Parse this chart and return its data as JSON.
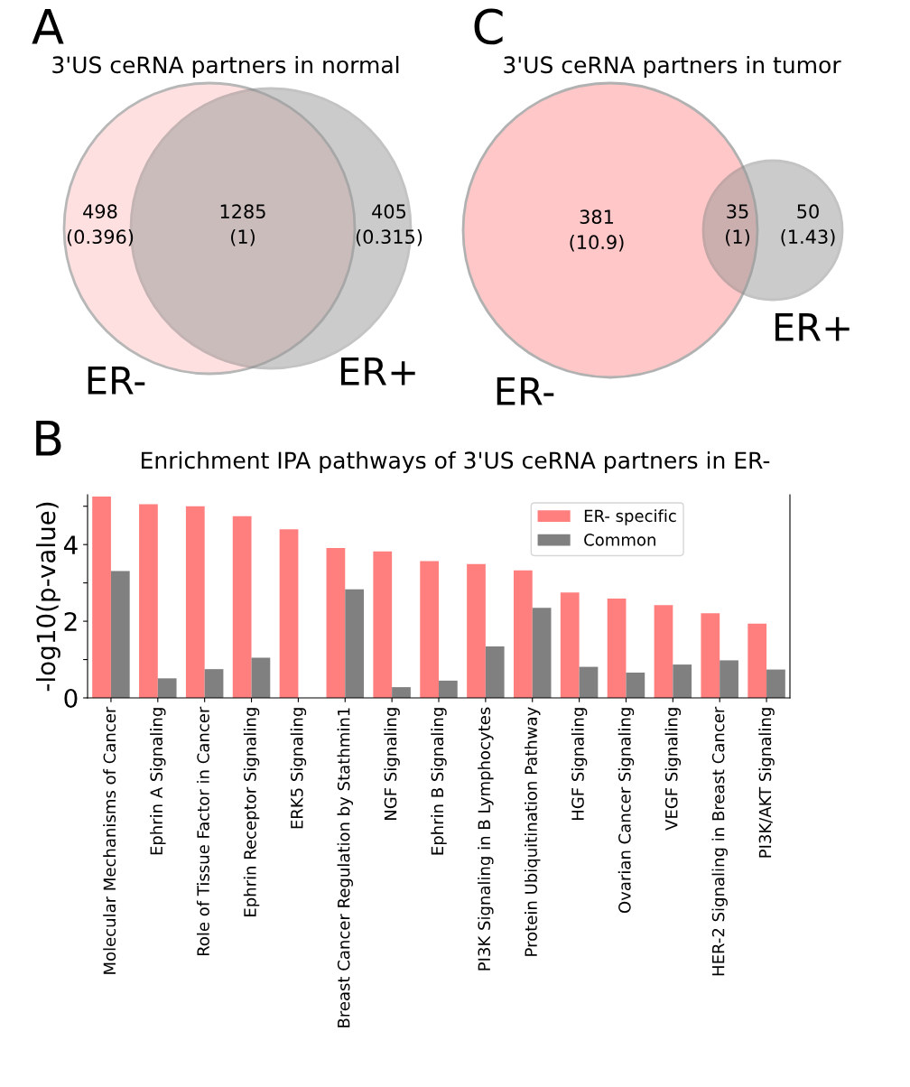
{
  "chart_data": [
    {
      "type": "other",
      "title": "3'US ceRNA partners in normal",
      "categories": [
        "ER-",
        "ER+"
      ],
      "colors": [
        "#ffcccc",
        "#999999"
      ],
      "annotations": [
        "A",
        "498\n(0.396)",
        "1285\n(1)",
        "405\n(0.315)"
      ]
    },
    {
      "type": "other",
      "title": "3'US ceRNA partners in tumor",
      "categories": [
        "ER-",
        "ER+"
      ],
      "colors": [
        "#ffaaaa",
        "#999999"
      ],
      "annotations": [
        "C",
        "381\n(10.9)",
        "35\n(1)",
        "50\n(1.43)"
      ]
    },
    {
      "type": "bar",
      "title": "Enrichment IPA pathways of 3'US ceRNA partners in ER-",
      "ylabel": "-log10(p-value)",
      "annotations": [
        "B"
      ],
      "categories": [
        "Molecular Mechanisms of Cancer",
        "Ephrin A Signaling",
        "Role of Tissue Factor in Cancer",
        "Ephrin Receptor Signaling",
        "ERK5 Signaling",
        "Breast Cancer Regulation by Stathmin1",
        "NGF Signaling",
        "Ephrin B Signaling",
        "PI3K Signaling in B Lymphocytes",
        "Protein Ubiquitination Pathway",
        "HGF Signaling",
        "Ovarian Cancer Signaling",
        "VEGF Signaling",
        "HER-2 Signaling in Breast Cancer",
        "PI3K/AKT Signaling"
      ],
      "series": [
        {
          "name": "ER- specific",
          "color": "#ff7f7f",
          "values": [
            5.25,
            5.05,
            5.0,
            4.74,
            4.4,
            3.91,
            3.82,
            3.57,
            3.49,
            3.33,
            2.75,
            2.59,
            2.42,
            2.21,
            1.94
          ]
        },
        {
          "name": "Common",
          "color": "#808080",
          "values": [
            3.31,
            0.51,
            0.75,
            1.05,
            null,
            2.83,
            0.28,
            0.45,
            1.34,
            2.35,
            0.81,
            0.66,
            0.87,
            0.98,
            0.74
          ]
        }
      ],
      "ylim": [
        0,
        5.3
      ],
      "yticks": [
        0,
        {
          "value": 1,
          "label": null
        },
        2,
        {
          "value": 3,
          "label": null
        },
        4,
        {
          "value": 5,
          "label": null
        }
      ],
      "grid": false,
      "legend": "top right"
    }
  ]
}
